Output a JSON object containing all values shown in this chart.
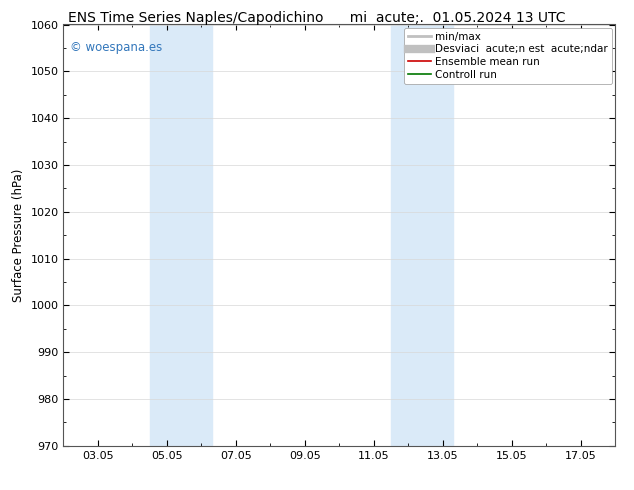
{
  "title_left": "ENS Time Series Naples/Capodichino",
  "title_right": "mi  acute;.  01.05.2024 13 UTC",
  "ylabel": "Surface Pressure (hPa)",
  "ylim": [
    970,
    1060
  ],
  "yticks": [
    970,
    980,
    990,
    1000,
    1010,
    1020,
    1030,
    1040,
    1050,
    1060
  ],
  "xtick_labels": [
    "03.05",
    "05.05",
    "07.05",
    "09.05",
    "11.05",
    "13.05",
    "15.05",
    "17.05"
  ],
  "xtick_positions": [
    1,
    3,
    5,
    7,
    9,
    11,
    13,
    15
  ],
  "xlim": [
    0,
    16
  ],
  "shaded_bands": [
    {
      "xmin": 2.5,
      "xmax": 3.2
    },
    {
      "xmin": 3.2,
      "xmax": 4.3
    },
    {
      "xmin": 9.5,
      "xmax": 10.2
    },
    {
      "xmin": 10.2,
      "xmax": 11.3
    }
  ],
  "shade_color": "#daeaf8",
  "bg_color": "#ffffff",
  "watermark": "© woespana.es",
  "watermark_color": "#3377bb",
  "legend_items": [
    {
      "label": "min/max",
      "color": "#c0c0c0",
      "lw": 2,
      "ls": "-"
    },
    {
      "label": "Desviaci  acute;n est  acute;ndar",
      "color": "#c0c0c0",
      "lw": 6,
      "ls": "-"
    },
    {
      "label": "Ensemble mean run",
      "color": "#cc0000",
      "lw": 1.2,
      "ls": "-"
    },
    {
      "label": "Controll run",
      "color": "#007700",
      "lw": 1.2,
      "ls": "-"
    }
  ],
  "grid_color": "#d8d8d8",
  "tick_color": "#000000",
  "title_fontsize": 10,
  "label_fontsize": 8.5,
  "tick_fontsize": 8,
  "legend_fontsize": 7.5
}
